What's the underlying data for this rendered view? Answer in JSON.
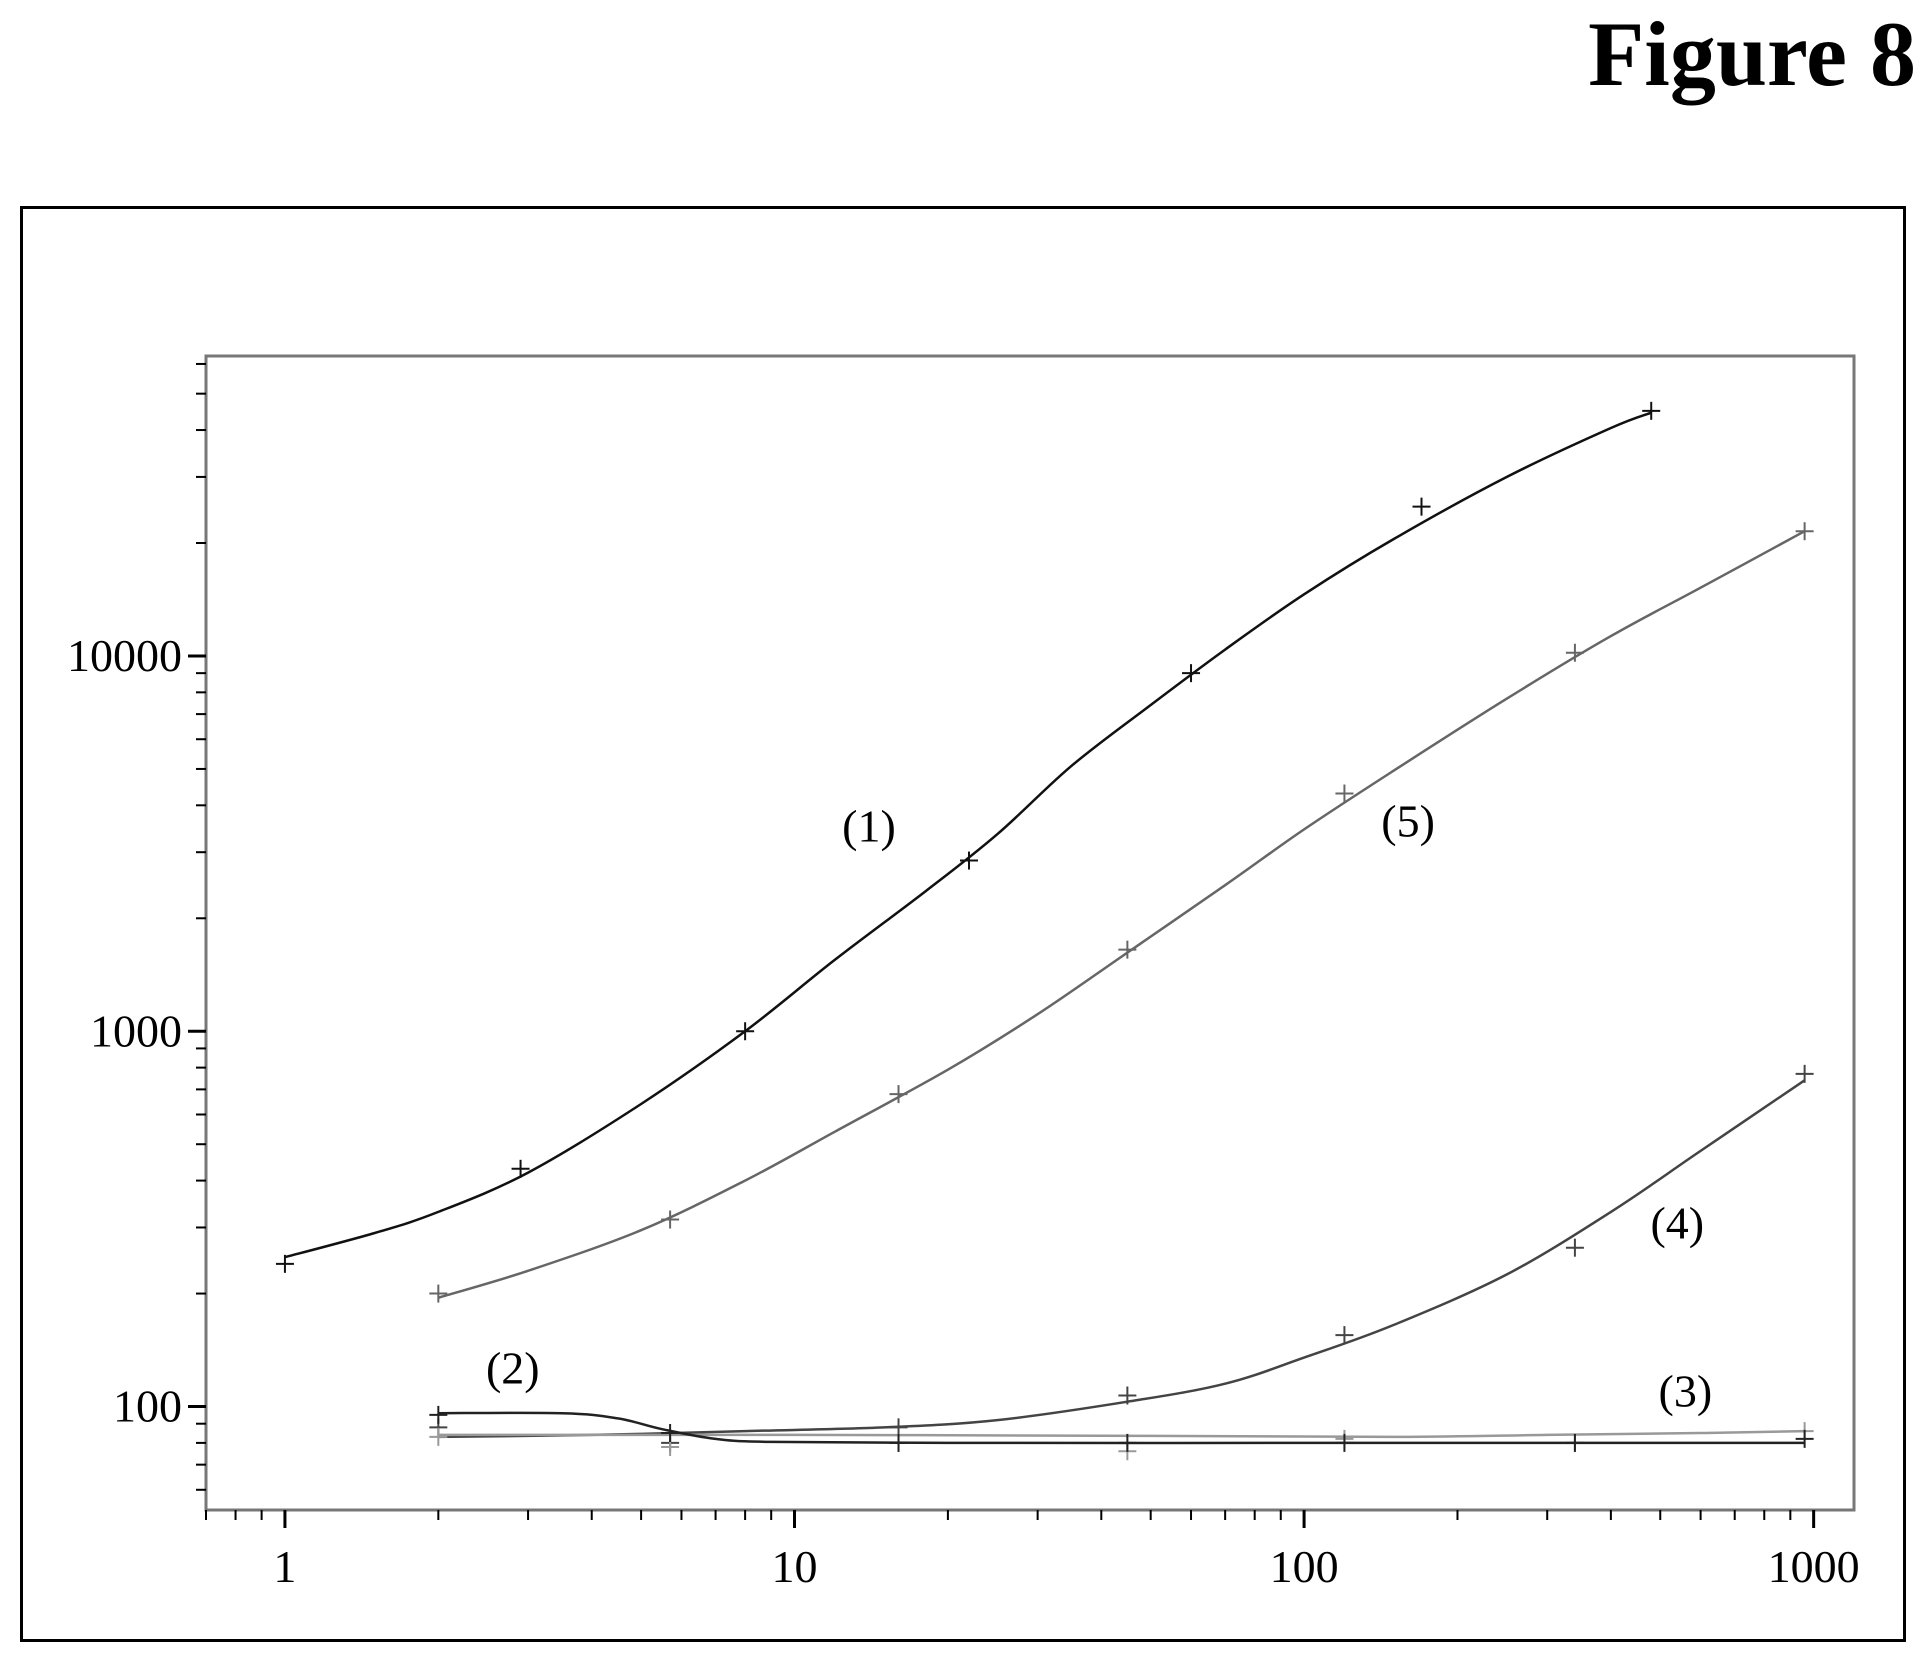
{
  "figure": {
    "title": "Figure 8"
  },
  "chart_data": {
    "type": "line",
    "title": "",
    "xlabel": "",
    "ylabel": "",
    "x_scale": "log",
    "y_scale": "log",
    "xlim": [
      0.7,
      1200
    ],
    "ylim": [
      53,
      63000
    ],
    "x_tick_labels": [
      {
        "value": 1,
        "label": "1"
      },
      {
        "value": 10,
        "label": "10"
      },
      {
        "value": 100,
        "label": "100"
      },
      {
        "value": 1000,
        "label": "1000"
      }
    ],
    "y_tick_labels": [
      {
        "value": 100,
        "label": "100"
      },
      {
        "value": 1000,
        "label": "1000"
      },
      {
        "value": 10000,
        "label": "10000"
      }
    ],
    "grid": false,
    "legend": "none",
    "series": [
      {
        "name": "(1)",
        "color": "#111111",
        "points": [
          [
            1,
            240
          ],
          [
            2.9,
            430
          ],
          [
            8,
            1000
          ],
          [
            22,
            2850
          ],
          [
            60,
            9000
          ],
          [
            170,
            25000
          ],
          [
            480,
            45000
          ]
        ],
        "curve": [
          [
            1,
            250
          ],
          [
            1.5,
            290
          ],
          [
            2,
            330
          ],
          [
            3,
            420
          ],
          [
            5,
            640
          ],
          [
            8,
            1000
          ],
          [
            12,
            1550
          ],
          [
            18,
            2350
          ],
          [
            25,
            3350
          ],
          [
            35,
            5100
          ],
          [
            50,
            7400
          ],
          [
            70,
            10400
          ],
          [
            100,
            14600
          ],
          [
            150,
            20500
          ],
          [
            250,
            30000
          ],
          [
            400,
            40500
          ],
          [
            480,
            44500
          ]
        ],
        "label": "(1)",
        "label_at": [
          14,
          3200
        ]
      },
      {
        "name": "(5)",
        "color": "#666666",
        "points": [
          [
            2,
            200
          ],
          [
            5.7,
            315
          ],
          [
            16,
            680
          ],
          [
            45,
            1650
          ],
          [
            120,
            4300
          ],
          [
            340,
            10200
          ],
          [
            960,
            21500
          ]
        ],
        "curve": [
          [
            2,
            195
          ],
          [
            3,
            230
          ],
          [
            5,
            295
          ],
          [
            8,
            400
          ],
          [
            12,
            540
          ],
          [
            20,
            790
          ],
          [
            30,
            1110
          ],
          [
            45,
            1620
          ],
          [
            70,
            2450
          ],
          [
            100,
            3450
          ],
          [
            150,
            4950
          ],
          [
            250,
            7700
          ],
          [
            400,
            11300
          ],
          [
            600,
            15200
          ],
          [
            960,
            21500
          ]
        ],
        "label": "(5)",
        "label_at": [
          160,
          3300
        ]
      },
      {
        "name": "(4)",
        "color": "#444444",
        "points": [
          [
            2,
            88
          ],
          [
            5.7,
            80
          ],
          [
            16,
            88
          ],
          [
            45,
            107
          ],
          [
            120,
            155
          ],
          [
            340,
            265
          ],
          [
            960,
            770
          ]
        ],
        "curve": [
          [
            2,
            83
          ],
          [
            4,
            84
          ],
          [
            8,
            86
          ],
          [
            15,
            88
          ],
          [
            25,
            92
          ],
          [
            45,
            103
          ],
          [
            70,
            115
          ],
          [
            100,
            135
          ],
          [
            150,
            165
          ],
          [
            250,
            225
          ],
          [
            400,
            330
          ],
          [
            600,
            480
          ],
          [
            960,
            740
          ]
        ],
        "label": "(4)",
        "label_at": [
          540,
          280
        ]
      },
      {
        "name": "(3)",
        "color": "#999999",
        "points": [
          [
            2,
            83
          ],
          [
            5.7,
            78
          ],
          [
            16,
            80
          ],
          [
            45,
            76
          ],
          [
            120,
            82
          ],
          [
            340,
            80
          ],
          [
            960,
            86
          ]
        ],
        "curve": [
          [
            2,
            84
          ],
          [
            10,
            84
          ],
          [
            50,
            83.5
          ],
          [
            150,
            83
          ],
          [
            300,
            84
          ],
          [
            600,
            85
          ],
          [
            960,
            86
          ]
        ],
        "label": "(3)",
        "label_at": [
          560,
          100
        ]
      },
      {
        "name": "(2)",
        "color": "#222222",
        "points": [
          [
            2,
            95
          ],
          [
            5.7,
            85
          ],
          [
            16,
            80
          ],
          [
            45,
            80
          ],
          [
            120,
            80
          ],
          [
            340,
            80
          ],
          [
            960,
            82
          ]
        ],
        "curve": [
          [
            2,
            96
          ],
          [
            3.5,
            96
          ],
          [
            4.5,
            93
          ],
          [
            5.5,
            87
          ],
          [
            7,
            82
          ],
          [
            9,
            80.5
          ],
          [
            20,
            80
          ],
          [
            100,
            80
          ],
          [
            500,
            80
          ],
          [
            960,
            80
          ]
        ],
        "label": "(2)",
        "label_at": [
          2.8,
          115
        ]
      }
    ]
  }
}
